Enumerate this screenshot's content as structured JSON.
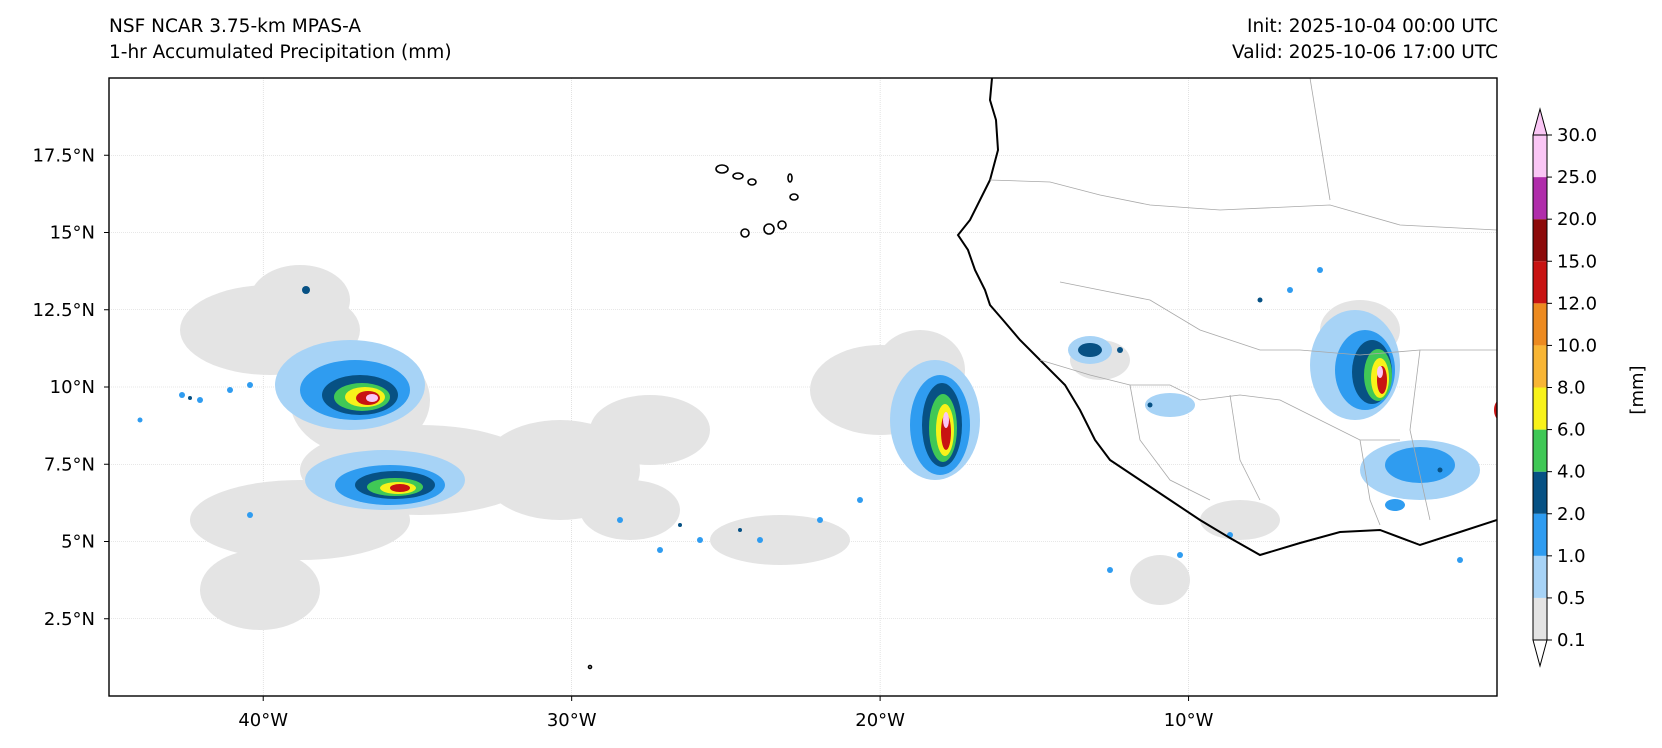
{
  "title": {
    "line1": "NSF NCAR 3.75-km MPAS-A",
    "line2": "1-hr Accumulated Precipitation (mm)"
  },
  "run": {
    "init": "Init: 2025-10-04 00:00 UTC",
    "valid": "Valid: 2025-10-06 17:00 UTC"
  },
  "map": {
    "lon_range": [
      -45,
      0
    ],
    "lat_range": [
      0,
      20
    ],
    "lat_ticks": [
      {
        "value": 17.5,
        "label": "17.5°N"
      },
      {
        "value": 15,
        "label": "15°N"
      },
      {
        "value": 12.5,
        "label": "12.5°N"
      },
      {
        "value": 10,
        "label": "10°N"
      },
      {
        "value": 7.5,
        "label": "7.5°N"
      },
      {
        "value": 5,
        "label": "5°N"
      },
      {
        "value": 2.5,
        "label": "2.5°N"
      }
    ],
    "lon_ticks": [
      {
        "value": -40,
        "label": "40°W"
      },
      {
        "value": -30,
        "label": "30°W"
      },
      {
        "value": -20,
        "label": "20°W"
      },
      {
        "value": -10,
        "label": "10°W"
      }
    ]
  },
  "colorbar": {
    "unit_label": "[mm]",
    "levels": [
      "0.1",
      "0.5",
      "1.0",
      "2.0",
      "4.0",
      "6.0",
      "8.0",
      "10.0",
      "12.0",
      "15.0",
      "20.0",
      "25.0",
      "30.0"
    ],
    "colors": [
      "#e4e4e4",
      "#a7d3f6",
      "#2f9cf0",
      "#075184",
      "#40c856",
      "#f8f21a",
      "#f8b534",
      "#ec8a20",
      "#c81312",
      "#8c0b0b",
      "#b02dab",
      "#fac6f5"
    ]
  }
}
